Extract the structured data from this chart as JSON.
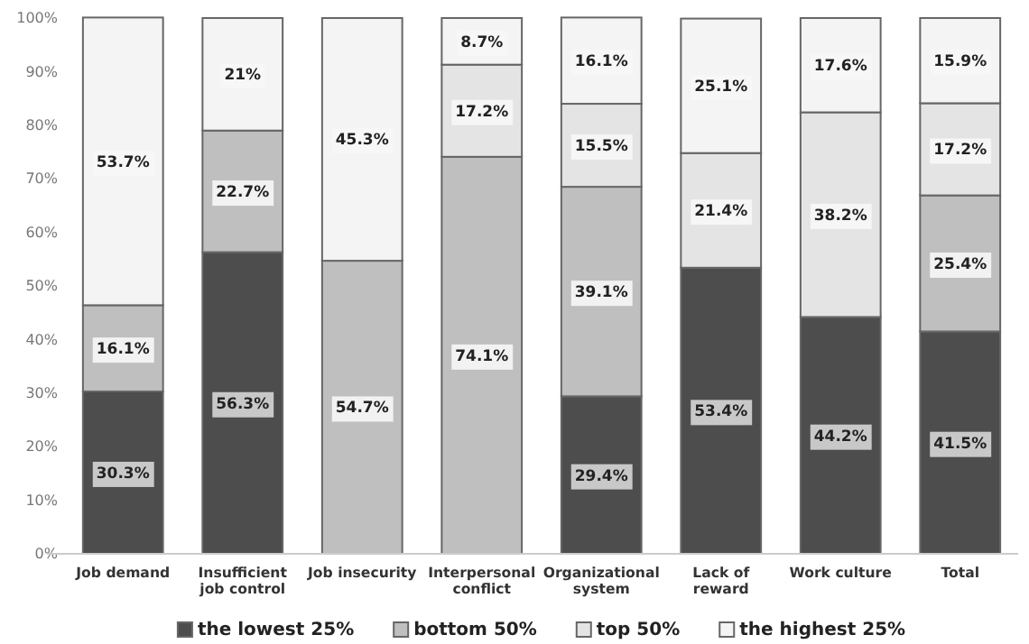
{
  "chart_data": {
    "type": "bar",
    "stacked": true,
    "categories": [
      "Job demand",
      "Insufficient job control",
      "Job insecurity",
      "Interpersonal conflict",
      "Organizational system",
      "Lack of reward",
      "Work culture",
      "Total"
    ],
    "series": [
      {
        "name": "the lowest 25%",
        "color": "#4d4d4d",
        "values": [
          30.3,
          56.3,
          null,
          null,
          29.4,
          53.4,
          44.2,
          41.5
        ],
        "value_labels": [
          "30.3%",
          "56.3%",
          null,
          null,
          "29.4%",
          "53.4%",
          "44.2%",
          "41.5%"
        ]
      },
      {
        "name": "bottom 50%",
        "color": "#bfbfbf",
        "values": [
          16.1,
          22.7,
          54.7,
          74.1,
          39.1,
          null,
          null,
          25.4
        ],
        "value_labels": [
          "16.1%",
          "22.7%",
          "54.7%",
          "74.1%",
          "39.1%",
          null,
          null,
          "25.4%"
        ]
      },
      {
        "name": "top 50%",
        "color": "#e4e4e4",
        "values": [
          null,
          null,
          null,
          17.2,
          15.5,
          21.4,
          38.2,
          17.2
        ],
        "value_labels": [
          null,
          null,
          null,
          "17.2%",
          "15.5%",
          "21.4%",
          "38.2%",
          "17.2%"
        ]
      },
      {
        "name": "the highest 25%",
        "color": "#f4f4f4",
        "values": [
          53.7,
          21,
          45.3,
          8.7,
          16.1,
          25.1,
          17.6,
          15.9
        ],
        "value_labels": [
          "53.7%",
          "21%",
          "45.3%",
          "8.7%",
          "16.1%",
          "25.1%",
          "17.6%",
          "15.9%"
        ]
      }
    ],
    "ylim": [
      0,
      100
    ],
    "yticks": [
      {
        "value": 0,
        "label": "0%"
      },
      {
        "value": 10,
        "label": "10%"
      },
      {
        "value": 20,
        "label": "20%"
      },
      {
        "value": 30,
        "label": "30%"
      },
      {
        "value": 40,
        "label": "40%"
      },
      {
        "value": 50,
        "label": "50%"
      },
      {
        "value": 60,
        "label": "60%"
      },
      {
        "value": 70,
        "label": "70%"
      },
      {
        "value": 80,
        "label": "80%"
      },
      {
        "value": 90,
        "label": "90%"
      },
      {
        "value": 100,
        "label": "100%"
      }
    ],
    "grid": false,
    "legend": "bottom"
  }
}
